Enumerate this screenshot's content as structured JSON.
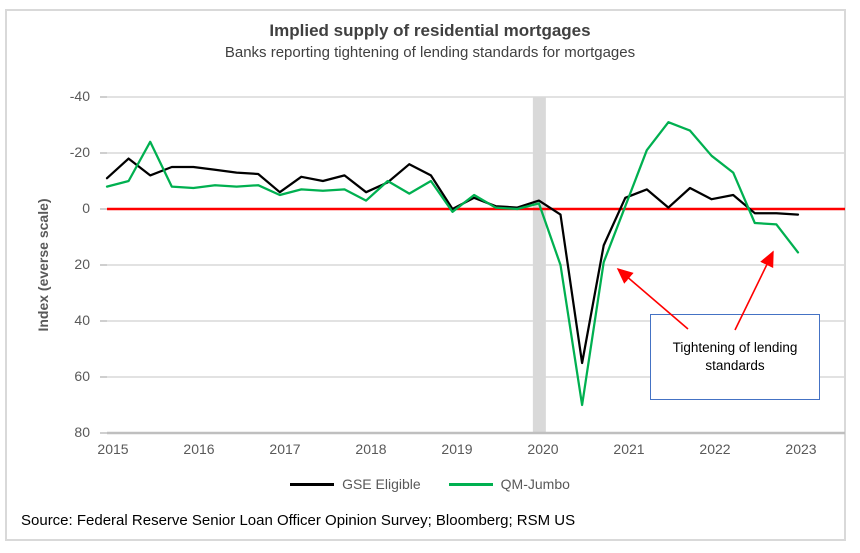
{
  "window": {
    "background": "#FFFFFF",
    "border_color": "#D9D9D9"
  },
  "header": {
    "title": "Implied supply of residential mortgages",
    "subtitle": "Banks reporting tightening of lending standards for mortgages"
  },
  "source_note": "Source: Federal Reserve Senior Loan Officer Opinion Survey; Bloomberg; RSM US",
  "annotation": {
    "text": "Tightening of lending standards",
    "box_border_color": "#4472C4",
    "arrow_color": "#FF0000"
  },
  "legend": [
    {
      "label": "GSE Eligible",
      "color": "#000000"
    },
    {
      "label": "QM-Jumbo",
      "color": "#00B050"
    }
  ],
  "chart_data": {
    "type": "line",
    "title": "Implied supply of residential mortgages",
    "subtitle": "Banks reporting tightening of lending standards for mortgages",
    "ylabel": "Index (everse scale)",
    "xlabel": "",
    "grid": "horizontal",
    "legend_position": "bottom",
    "y_axis": {
      "inverted": true,
      "min": -40,
      "max": 80,
      "ticks": [
        -40,
        -20,
        0,
        20,
        40,
        60,
        80
      ]
    },
    "x_ticks": [
      "2015",
      "2016",
      "2017",
      "2018",
      "2019",
      "2020",
      "2021",
      "2022",
      "2023"
    ],
    "x": [
      "2015Q1",
      "2015Q2",
      "2015Q3",
      "2015Q4",
      "2016Q1",
      "2016Q2",
      "2016Q3",
      "2016Q4",
      "2017Q1",
      "2017Q2",
      "2017Q3",
      "2017Q4",
      "2018Q1",
      "2018Q2",
      "2018Q3",
      "2018Q4",
      "2019Q1",
      "2019Q2",
      "2019Q3",
      "2019Q4",
      "2020Q1",
      "2020Q2",
      "2020Q3",
      "2020Q4",
      "2021Q1",
      "2021Q2",
      "2021Q3",
      "2021Q4",
      "2022Q1",
      "2022Q2",
      "2022Q3",
      "2022Q4",
      "2023Q1"
    ],
    "zero_line": {
      "value": 0,
      "color": "#FF0000"
    },
    "recession_band": {
      "at": "2020Q1",
      "color": "#D9D9D9"
    },
    "series": [
      {
        "name": "GSE Eligible",
        "color": "#000000",
        "values": [
          -11,
          -18,
          -12,
          -15,
          -15,
          -14,
          -13,
          -12.5,
          -6,
          -11.5,
          -10,
          -12,
          -6,
          -9.5,
          -16,
          -12,
          0,
          -4,
          -1,
          -0.5,
          -3,
          2,
          55,
          13,
          -4,
          -7,
          -0.5,
          -7.5,
          -3.5,
          -5,
          1.5,
          1.5,
          2
        ]
      },
      {
        "name": "QM-Jumbo",
        "color": "#00B050",
        "values": [
          -8,
          -10,
          -24,
          -8,
          -7.5,
          -8.5,
          -8,
          -8.5,
          -5,
          -7,
          -6.5,
          -7,
          -3,
          -10,
          -5.5,
          -10,
          1,
          -5,
          -0.5,
          0,
          -2,
          20,
          70,
          19,
          -1,
          -21,
          -31,
          -28,
          -19,
          -13,
          5,
          5.5,
          15.5
        ]
      }
    ]
  },
  "colors": {
    "gridline": "#D9D9D9",
    "axis_line": "#BFBFBF",
    "tick_text": "#595959",
    "title_text": "#404040"
  }
}
